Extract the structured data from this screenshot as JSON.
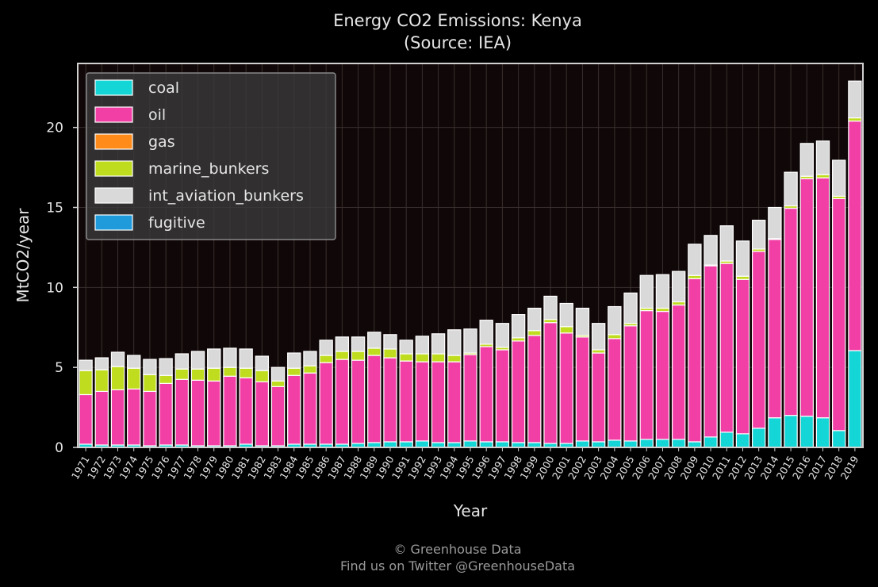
{
  "chart_data": {
    "type": "bar",
    "stacked": true,
    "title": "Energy CO2 Emissions: Kenya",
    "subtitle": "(Source: IEA)",
    "xlabel": "Year",
    "ylabel": "MtCO2/year",
    "ylim": [
      0,
      24
    ],
    "yticks": [
      0,
      5,
      10,
      15,
      20
    ],
    "grid": true,
    "legend_position": "top-left",
    "categories": [
      "1971",
      "1972",
      "1973",
      "1974",
      "1975",
      "1976",
      "1977",
      "1978",
      "1979",
      "1980",
      "1981",
      "1982",
      "1983",
      "1984",
      "1985",
      "1986",
      "1987",
      "1988",
      "1989",
      "1990",
      "1991",
      "1992",
      "1993",
      "1994",
      "1995",
      "1996",
      "1997",
      "1998",
      "1999",
      "2000",
      "2001",
      "2002",
      "2003",
      "2004",
      "2005",
      "2006",
      "2007",
      "2008",
      "2009",
      "2010",
      "2011",
      "2012",
      "2013",
      "2014",
      "2015",
      "2016",
      "2017",
      "2018",
      "2019"
    ],
    "series": [
      {
        "name": "coal",
        "color": "#14d6d6",
        "values": [
          0.2,
          0.15,
          0.15,
          0.15,
          0.1,
          0.15,
          0.15,
          0.1,
          0.1,
          0.1,
          0.2,
          0.1,
          0.1,
          0.2,
          0.2,
          0.2,
          0.2,
          0.25,
          0.3,
          0.35,
          0.35,
          0.4,
          0.3,
          0.3,
          0.4,
          0.35,
          0.35,
          0.3,
          0.3,
          0.25,
          0.25,
          0.4,
          0.35,
          0.45,
          0.4,
          0.5,
          0.5,
          0.5,
          0.35,
          0.65,
          0.95,
          0.85,
          1.2,
          1.85,
          2.0,
          1.95,
          1.85,
          1.05,
          6.05
        ]
      },
      {
        "name": "oil",
        "color": "#f23fa6",
        "values": [
          3.1,
          3.35,
          3.45,
          3.5,
          3.4,
          3.85,
          4.1,
          4.1,
          4.05,
          4.35,
          4.15,
          4.0,
          3.7,
          4.3,
          4.45,
          5.1,
          5.3,
          5.2,
          5.45,
          5.25,
          5.05,
          4.95,
          5.05,
          5.05,
          5.4,
          5.95,
          5.75,
          6.35,
          6.7,
          7.55,
          6.9,
          6.5,
          5.55,
          6.35,
          7.2,
          8.05,
          8.0,
          8.4,
          10.2,
          10.7,
          10.55,
          9.65,
          11.05,
          11.15,
          12.95,
          14.85,
          15.0,
          14.5,
          14.35
        ]
      },
      {
        "name": "gas",
        "color": "#ff8c1a",
        "values": [
          0,
          0,
          0,
          0,
          0,
          0,
          0,
          0,
          0,
          0,
          0,
          0,
          0,
          0,
          0,
          0,
          0,
          0,
          0,
          0,
          0,
          0,
          0,
          0,
          0,
          0,
          0,
          0,
          0,
          0,
          0,
          0,
          0,
          0,
          0,
          0,
          0,
          0,
          0,
          0,
          0,
          0,
          0,
          0,
          0,
          0,
          0,
          0,
          0
        ]
      },
      {
        "name": "marine_bunkers",
        "color": "#c0dc1e",
        "values": [
          1.5,
          1.35,
          1.45,
          1.3,
          1.05,
          0.5,
          0.65,
          0.7,
          0.8,
          0.55,
          0.6,
          0.7,
          0.35,
          0.45,
          0.45,
          0.45,
          0.5,
          0.55,
          0.45,
          0.55,
          0.45,
          0.5,
          0.5,
          0.4,
          0.1,
          0.15,
          0.15,
          0.2,
          0.3,
          0.2,
          0.4,
          0.1,
          0.2,
          0.25,
          0.15,
          0.15,
          0.2,
          0.2,
          0.2,
          0.05,
          0.15,
          0.2,
          0.15,
          0.05,
          0.15,
          0.15,
          0.2,
          0.15,
          0.2
        ]
      },
      {
        "name": "int_aviation_bunkers",
        "color": "#d9d9d9",
        "values": [
          0.65,
          0.75,
          0.9,
          0.8,
          0.95,
          1.05,
          0.95,
          1.1,
          1.2,
          1.2,
          1.2,
          0.9,
          0.85,
          0.95,
          0.9,
          0.95,
          0.9,
          0.9,
          1.0,
          0.9,
          0.85,
          1.1,
          1.25,
          1.6,
          1.5,
          1.5,
          1.5,
          1.45,
          1.4,
          1.45,
          1.45,
          1.7,
          1.65,
          1.75,
          1.9,
          2.05,
          2.1,
          1.9,
          1.95,
          1.85,
          2.2,
          2.2,
          1.8,
          1.95,
          2.1,
          2.05,
          2.1,
          2.25,
          2.3
        ]
      },
      {
        "name": "fugitive",
        "color": "#1f9bdc",
        "values": [
          0,
          0,
          0,
          0,
          0,
          0,
          0,
          0,
          0,
          0,
          0,
          0,
          0,
          0,
          0,
          0,
          0,
          0,
          0,
          0,
          0,
          0,
          0,
          0,
          0,
          0,
          0,
          0,
          0,
          0,
          0,
          0,
          0,
          0,
          0,
          0,
          0,
          0,
          0,
          0,
          0,
          0,
          0,
          0,
          0,
          0,
          0,
          0,
          0
        ]
      }
    ]
  },
  "footer": {
    "credit": "© Greenhouse Data",
    "twitter": "Find us on Twitter @GreenhouseData"
  },
  "colors": {
    "background": "#000000",
    "plot_background": "#100808",
    "text": "#e6e6e6",
    "bar_edge": "#ffffff"
  }
}
